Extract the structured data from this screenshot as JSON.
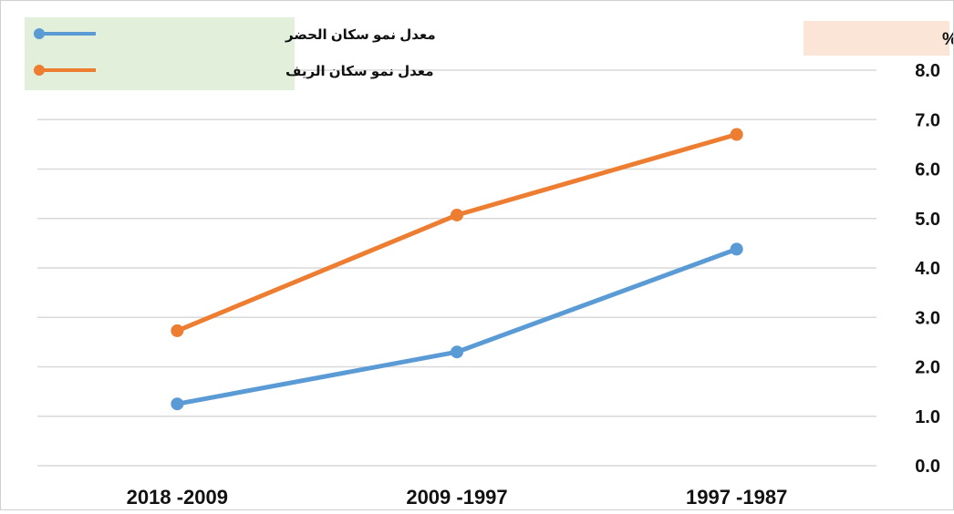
{
  "chart_data": {
    "type": "line",
    "ylabel": "معدل النمو %",
    "categories": [
      "2018 -2009",
      "2009 -1997",
      "1997 -1987"
    ],
    "ylim": [
      0,
      8
    ],
    "yticks": [
      "0.0",
      "1.0",
      "2.0",
      "3.0",
      "4.0",
      "5.0",
      "6.0",
      "7.0",
      "8.0"
    ],
    "grid": true,
    "legend_position": "top-left",
    "series": [
      {
        "name": "معدل نمو  سكان الحضر",
        "color": "#5b9bd5",
        "values": [
          1.25,
          2.3,
          4.38
        ]
      },
      {
        "name": "معدل نمو  سكان الريف",
        "color": "#ed7d31",
        "values": [
          2.73,
          5.07,
          6.7
        ]
      }
    ]
  },
  "colors": {
    "legend_bg": "#e2efda",
    "ylabel_bg": "#fbe5d6",
    "grid": "#d9d9d9"
  }
}
